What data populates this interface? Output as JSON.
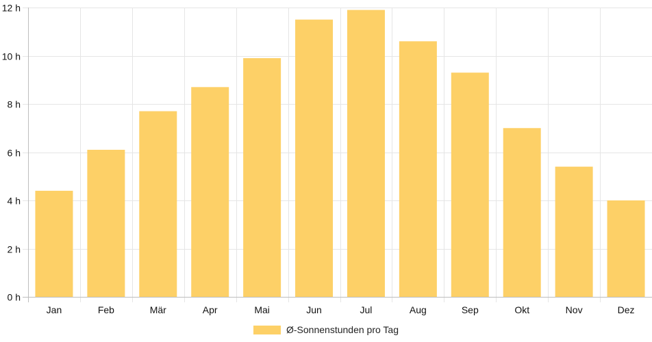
{
  "chart_data": {
    "type": "bar",
    "categories": [
      "Jan",
      "Feb",
      "Mär",
      "Apr",
      "Mai",
      "Jun",
      "Jul",
      "Aug",
      "Sep",
      "Okt",
      "Nov",
      "Dez"
    ],
    "series": [
      {
        "name": "Ø-Sonnenstunden pro Tag",
        "values": [
          4.4,
          6.1,
          7.7,
          8.7,
          9.9,
          11.5,
          11.9,
          10.6,
          9.3,
          7.0,
          5.4,
          4.0
        ]
      }
    ],
    "y_ticks": [
      "0 h",
      "2 h",
      "4 h",
      "6 h",
      "8 h",
      "10 h",
      "12 h"
    ],
    "ylim": [
      0,
      12
    ],
    "grid": true,
    "legend_position": "bottom",
    "colors": {
      "bar": "#fdd067",
      "grid": "#e5e5e5",
      "axis": "#bdbdbd"
    }
  }
}
